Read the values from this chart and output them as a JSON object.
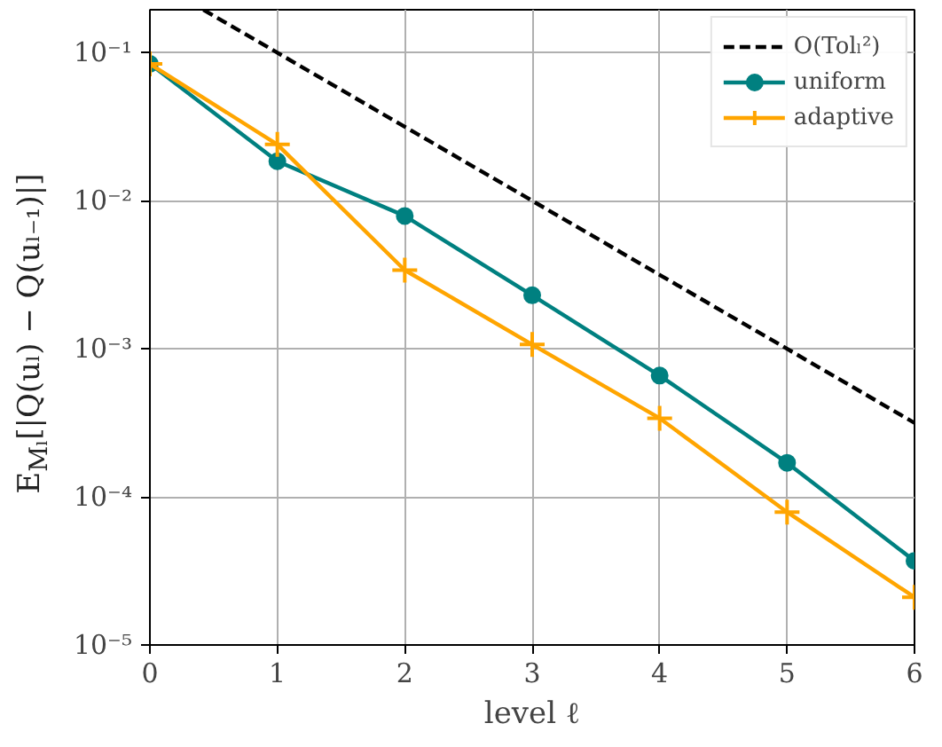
{
  "chart_data": {
    "type": "line",
    "xlabel": "level ℓ",
    "ylabel": "E$_{Mₗ}$[|Q(uₗ) − Q(uₗ₋₁)|]",
    "x": [
      0,
      1,
      2,
      3,
      4,
      5,
      6
    ],
    "series": [
      {
        "name": "O(Tolₗ²)",
        "color": "#000000",
        "line_style": "dashed",
        "marker": "none",
        "x": [
          0.42,
          1,
          2,
          3,
          4,
          5,
          6
        ],
        "values": [
          0.195,
          0.1,
          0.0316,
          0.01,
          0.00316,
          0.001,
          0.000316
        ]
      },
      {
        "name": "uniform",
        "color": "#008080",
        "line_style": "solid",
        "marker": "circle",
        "values": [
          0.084,
          0.0185,
          0.0079,
          0.0023,
          0.00066,
          0.00017,
          3.7e-05
        ]
      },
      {
        "name": "adaptive",
        "color": "#ffa500",
        "line_style": "solid",
        "marker": "cross",
        "values": [
          0.084,
          0.024,
          0.0034,
          0.00107,
          0.00034,
          7.9e-05,
          2.1e-05
        ]
      }
    ],
    "log": "y",
    "xlim": [
      0,
      6
    ],
    "ylim": [
      1e-05,
      0.195
    ],
    "xticks": [
      0,
      1,
      2,
      3,
      4,
      5,
      6
    ],
    "yticks": [
      {
        "value": 1e-05,
        "label": "10⁻⁵"
      },
      {
        "value": 0.0001,
        "label": "10⁻⁴"
      },
      {
        "value": 0.001,
        "label": "10⁻³"
      },
      {
        "value": 0.01,
        "label": "10⁻²"
      },
      {
        "value": 0.1,
        "label": "10⁻¹"
      }
    ],
    "grid": true,
    "legend": "top right"
  }
}
